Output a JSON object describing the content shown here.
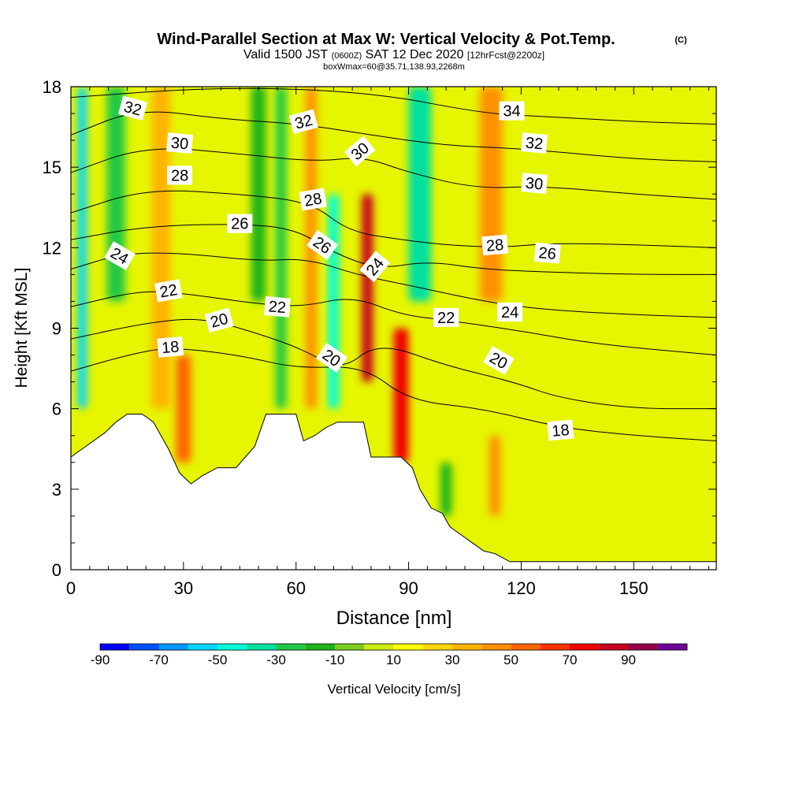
{
  "header": {
    "title": "Wind-Parallel Section at Max W: Vertical Velocity & Pot.Temp.",
    "title_mark": "(C)",
    "subtitle_a": "Valid 1500 JST",
    "subtitle_b": "(0600Z)",
    "subtitle_c": "SAT 12 Dec 2020",
    "subtitle_d": "[12hrFcst@2200z]",
    "subtitle2": "boxWmax=60@35.71,138.93,2268m"
  },
  "colorbar": {
    "label": "Vertical Velocity [cm/s]",
    "tick_labels": [
      "-90",
      "-70",
      "-50",
      "-30",
      "-10",
      "10",
      "30",
      "50",
      "70",
      "90"
    ],
    "colors": [
      "#0000ff",
      "#0050ff",
      "#0096ff",
      "#00d6ff",
      "#00ffd6",
      "#00e0a0",
      "#22c944",
      "#1fb31a",
      "#7fcd1f",
      "#cceb0f",
      "#ffff00",
      "#ffd700",
      "#ffb400",
      "#ff9000",
      "#ff6400",
      "#ff3200",
      "#f00000",
      "#c8001e",
      "#960046",
      "#6e0096"
    ]
  },
  "chart_data": {
    "type": "heatmap",
    "xlabel": "Distance [nm]",
    "ylabel": "Height [Kft MSL]",
    "xlim": [
      0,
      172
    ],
    "ylim": [
      0,
      18
    ],
    "x_ticks": [
      0,
      30,
      60,
      90,
      120,
      150
    ],
    "x_tick_labels": [
      "0",
      "30",
      "60",
      "90",
      "120",
      "150"
    ],
    "y_ticks": [
      0,
      3,
      6,
      9,
      12,
      15,
      18
    ],
    "y_tick_labels": [
      "0",
      "3",
      "6",
      "9",
      "12",
      "15",
      "18"
    ],
    "color_range": [
      -90,
      90
    ],
    "field": "vertical velocity (cm/s)",
    "contour_field": "potential temperature",
    "velocity_features": [
      {
        "x": 3,
        "z_range": [
          6,
          18
        ],
        "w": -55,
        "width": 2.5
      },
      {
        "x": 12,
        "z_range": [
          10,
          18
        ],
        "w": -30,
        "width": 5
      },
      {
        "x": 24,
        "z_range": [
          6,
          18
        ],
        "w": 25,
        "width": 5
      },
      {
        "x": 30,
        "z_range": [
          4,
          8
        ],
        "w": 40,
        "width": 4
      },
      {
        "x": 50,
        "z_range": [
          10,
          18
        ],
        "w": -25,
        "width": 4
      },
      {
        "x": 56,
        "z_range": [
          6,
          18
        ],
        "w": -35,
        "width": 3
      },
      {
        "x": 64,
        "z_range": [
          6,
          18
        ],
        "w": 30,
        "width": 3
      },
      {
        "x": 70,
        "z_range": [
          6,
          14
        ],
        "w": -50,
        "width": 3
      },
      {
        "x": 79,
        "z_range": [
          7,
          14
        ],
        "w": 70,
        "width": 3
      },
      {
        "x": 88,
        "z_range": [
          4,
          9
        ],
        "w": 60,
        "width": 4
      },
      {
        "x": 93,
        "z_range": [
          10,
          18
        ],
        "w": -40,
        "width": 6
      },
      {
        "x": 112,
        "z_range": [
          10,
          18
        ],
        "w": 30,
        "width": 6
      },
      {
        "x": 113,
        "z_range": [
          2,
          5
        ],
        "w": 30,
        "width": 3
      },
      {
        "x": 100,
        "z_range": [
          2,
          4
        ],
        "w": -20,
        "width": 3
      }
    ],
    "terrain_kft": [
      [
        0,
        4.2
      ],
      [
        3,
        4.5
      ],
      [
        6,
        4.8
      ],
      [
        9,
        5.1
      ],
      [
        12,
        5.5
      ],
      [
        15,
        5.8
      ],
      [
        19,
        5.8
      ],
      [
        22,
        5.5
      ],
      [
        24,
        5.0
      ],
      [
        26,
        4.5
      ],
      [
        29,
        3.6
      ],
      [
        32,
        3.2
      ],
      [
        35,
        3.5
      ],
      [
        39,
        3.8
      ],
      [
        44,
        3.8
      ],
      [
        49,
        4.6
      ],
      [
        52,
        5.8
      ],
      [
        55,
        5.8
      ],
      [
        60,
        5.8
      ],
      [
        62,
        4.8
      ],
      [
        65,
        5.0
      ],
      [
        68,
        5.3
      ],
      [
        71,
        5.5
      ],
      [
        78,
        5.5
      ],
      [
        80,
        4.2
      ],
      [
        88,
        4.2
      ],
      [
        91,
        3.8
      ],
      [
        93,
        3.0
      ],
      [
        96,
        2.3
      ],
      [
        99,
        2.1
      ],
      [
        101,
        1.6
      ],
      [
        104,
        1.3
      ],
      [
        107,
        1.0
      ],
      [
        110,
        0.7
      ],
      [
        113,
        0.6
      ],
      [
        117,
        0.3
      ],
      [
        125,
        0.3
      ],
      [
        172,
        0.3
      ]
    ],
    "theta_contours": [
      {
        "label": "18",
        "points": [
          [
            0,
            7.4
          ],
          [
            15,
            8.0
          ],
          [
            26,
            8.3
          ],
          [
            45,
            8.0
          ],
          [
            60,
            7.5
          ],
          [
            78,
            7.6
          ],
          [
            90,
            6.3
          ],
          [
            110,
            6.0
          ],
          [
            130,
            5.3
          ],
          [
            150,
            5.0
          ],
          [
            172,
            4.8
          ]
        ]
      },
      {
        "label": "20",
        "points": [
          [
            0,
            8.6
          ],
          [
            20,
            9.2
          ],
          [
            35,
            9.4
          ],
          [
            50,
            8.8
          ],
          [
            62,
            8.2
          ],
          [
            72,
            7.4
          ],
          [
            82,
            8.5
          ],
          [
            100,
            7.6
          ],
          [
            118,
            7.0
          ],
          [
            130,
            6.4
          ],
          [
            150,
            6.0
          ],
          [
            172,
            6.0
          ]
        ]
      },
      {
        "label": "22",
        "points": [
          [
            0,
            9.8
          ],
          [
            18,
            10.4
          ],
          [
            30,
            10.3
          ],
          [
            50,
            9.9
          ],
          [
            62,
            9.8
          ],
          [
            75,
            10.2
          ],
          [
            88,
            9.5
          ],
          [
            100,
            9.3
          ],
          [
            120,
            8.9
          ],
          [
            140,
            8.4
          ],
          [
            172,
            8.0
          ]
        ]
      },
      {
        "label": "24",
        "points": [
          [
            0,
            11.2
          ],
          [
            14,
            11.8
          ],
          [
            30,
            11.8
          ],
          [
            50,
            11.5
          ],
          [
            63,
            11.6
          ],
          [
            76,
            11.0
          ],
          [
            90,
            10.6
          ],
          [
            110,
            10.0
          ],
          [
            125,
            9.7
          ],
          [
            150,
            9.5
          ],
          [
            172,
            9.4
          ]
        ]
      },
      {
        "label": "26",
        "points": [
          [
            0,
            12.3
          ],
          [
            20,
            12.8
          ],
          [
            45,
            12.9
          ],
          [
            60,
            12.7
          ],
          [
            70,
            11.8
          ],
          [
            82,
            11.2
          ],
          [
            95,
            11.5
          ],
          [
            110,
            11.2
          ],
          [
            125,
            11.1
          ],
          [
            150,
            11.0
          ],
          [
            172,
            11.0
          ]
        ]
      },
      {
        "label": "28",
        "points": [
          [
            0,
            13.3
          ],
          [
            20,
            14.2
          ],
          [
            45,
            14.0
          ],
          [
            64,
            13.7
          ],
          [
            74,
            12.6
          ],
          [
            88,
            12.3
          ],
          [
            100,
            12.1
          ],
          [
            115,
            12.0
          ],
          [
            130,
            12.2
          ],
          [
            172,
            12.0
          ]
        ]
      },
      {
        "label": "30",
        "points": [
          [
            0,
            14.8
          ],
          [
            20,
            15.8
          ],
          [
            45,
            15.5
          ],
          [
            65,
            15.2
          ],
          [
            78,
            15.4
          ],
          [
            90,
            14.8
          ],
          [
            108,
            14.2
          ],
          [
            125,
            14.3
          ],
          [
            150,
            14.0
          ],
          [
            172,
            13.8
          ]
        ]
      },
      {
        "label": "32",
        "points": [
          [
            0,
            16.2
          ],
          [
            18,
            17.2
          ],
          [
            40,
            16.8
          ],
          [
            62,
            16.6
          ],
          [
            80,
            16.2
          ],
          [
            100,
            15.8
          ],
          [
            120,
            15.7
          ],
          [
            150,
            15.3
          ],
          [
            172,
            15.2
          ]
        ]
      },
      {
        "label": "34",
        "points": [
          [
            0,
            17.6
          ],
          [
            40,
            18.0
          ],
          [
            80,
            17.8
          ],
          [
            110,
            17.0
          ],
          [
            125,
            16.9
          ],
          [
            150,
            16.7
          ],
          [
            172,
            16.6
          ]
        ]
      }
    ],
    "contour_labels": [
      {
        "text": "32",
        "x": 16.5,
        "y": 17.2,
        "rot": 15
      },
      {
        "text": "30",
        "x": 29,
        "y": 15.9,
        "rot": 5
      },
      {
        "text": "28",
        "x": 29,
        "y": 14.7,
        "rot": 0
      },
      {
        "text": "26",
        "x": 45,
        "y": 12.9,
        "rot": 0
      },
      {
        "text": "24",
        "x": 13,
        "y": 11.7,
        "rot": 30
      },
      {
        "text": "22",
        "x": 26,
        "y": 10.4,
        "rot": -10
      },
      {
        "text": "20",
        "x": 39.5,
        "y": 9.3,
        "rot": -15
      },
      {
        "text": "18",
        "x": 26.5,
        "y": 8.3,
        "rot": -5
      },
      {
        "text": "32",
        "x": 62,
        "y": 16.7,
        "rot": -15
      },
      {
        "text": "28",
        "x": 64.5,
        "y": 13.8,
        "rot": -10
      },
      {
        "text": "26",
        "x": 67,
        "y": 12.1,
        "rot": 35
      },
      {
        "text": "22",
        "x": 55,
        "y": 9.8,
        "rot": 5
      },
      {
        "text": "20",
        "x": 69.5,
        "y": 7.9,
        "rot": 35
      },
      {
        "text": "30",
        "x": 77,
        "y": 15.6,
        "rot": -40
      },
      {
        "text": "24",
        "x": 81,
        "y": 11.3,
        "rot": -50
      },
      {
        "text": "22",
        "x": 100,
        "y": 9.4,
        "rot": 0
      },
      {
        "text": "34",
        "x": 117.5,
        "y": 17.1,
        "rot": 0
      },
      {
        "text": "32",
        "x": 123.5,
        "y": 15.9,
        "rot": 5
      },
      {
        "text": "30",
        "x": 123.5,
        "y": 14.4,
        "rot": 5
      },
      {
        "text": "28",
        "x": 113,
        "y": 12.1,
        "rot": -5
      },
      {
        "text": "26",
        "x": 127,
        "y": 11.8,
        "rot": 5
      },
      {
        "text": "24",
        "x": 117,
        "y": 9.6,
        "rot": 0
      },
      {
        "text": "20",
        "x": 114,
        "y": 7.8,
        "rot": 30
      },
      {
        "text": "18",
        "x": 130.5,
        "y": 5.2,
        "rot": -5
      }
    ]
  }
}
